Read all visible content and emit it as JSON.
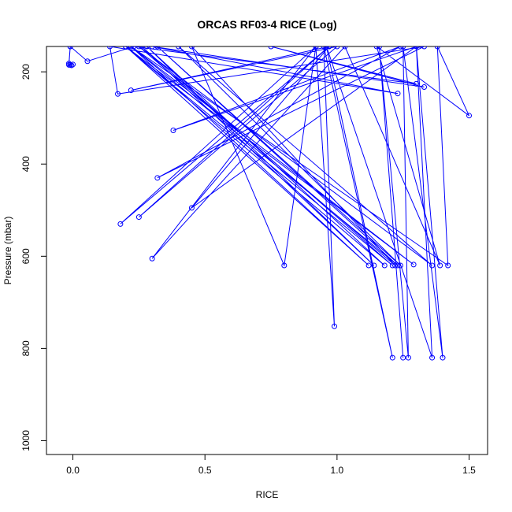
{
  "chart_data": {
    "type": "line",
    "title": "ORCAS RF03-4 RICE (Log)",
    "xlabel": "RICE",
    "ylabel": "Pressure (mbar)",
    "xlim": [
      -0.1,
      1.57
    ],
    "ylim": [
      1030,
      145
    ],
    "xticks": [
      "0.0",
      "0.5",
      "1.0",
      "1.5"
    ],
    "xtick_values": [
      0.0,
      0.5,
      1.0,
      1.5
    ],
    "yticks": [
      "200",
      "400",
      "600",
      "800",
      "1000"
    ],
    "ytick_values": [
      200,
      400,
      600,
      800,
      1000
    ],
    "series_color": "#0000ff",
    "grid": false,
    "legend": "none",
    "series": [
      {
        "x": [
          -0.01,
          -0.015,
          -0.005,
          -0.01,
          0.0,
          -0.015,
          -0.01,
          0.055,
          0.23,
          1.3,
          0.75,
          1.33,
          0.3,
          1.23,
          0.14,
          0.17,
          1.33,
          0.32,
          1.24,
          0.38,
          1.3,
          0.45,
          0.97,
          0.22,
          1.0,
          0.25,
          0.97,
          0.18,
          0.92,
          0.3,
          1.03,
          1.39,
          1.15,
          1.5,
          1.38,
          1.42,
          0.22,
          1.29,
          0.2,
          1.21,
          0.26,
          1.14,
          0.28,
          1.18,
          0.2,
          1.12,
          0.22,
          1.23,
          0.32,
          1.24,
          0.4,
          1.36,
          0.25,
          1.22,
          0.45,
          0.8,
          0.92,
          0.99,
          0.95,
          1.21,
          0.96,
          1.36,
          1.3,
          1.4,
          1.25,
          1.27,
          1.16,
          1.25
        ],
        "y": [
          145,
          182,
          186,
          185,
          184,
          185,
          145,
          177,
          145,
          226,
          145,
          233,
          145,
          247,
          145,
          248,
          145,
          430,
          145,
          327,
          145,
          495,
          145,
          240,
          145,
          515,
          145,
          530,
          145,
          605,
          145,
          620,
          145,
          295,
          145,
          620,
          145,
          618,
          145,
          620,
          145,
          620,
          145,
          620,
          145,
          620,
          145,
          620,
          145,
          620,
          145,
          620,
          145,
          620,
          145,
          620,
          145,
          752,
          145,
          820,
          145,
          820,
          145,
          820,
          145,
          820,
          145,
          820
        ]
      }
    ]
  }
}
